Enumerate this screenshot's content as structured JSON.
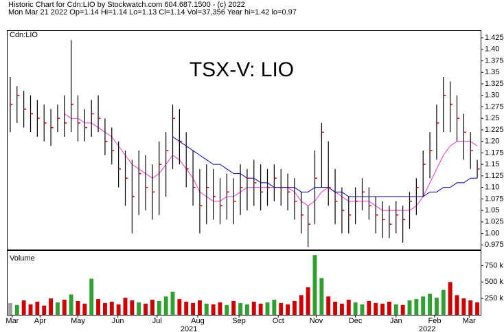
{
  "header": {
    "line1": "Historic Chart for Cdn:LIO by Stockwatch.com 604.687.1500 - (c) 2022",
    "line2": "Mon Mar 21 2022  Op=1.14  Hi=1.14  Lo=1.13  Cl=1.14  Vol=37,356  Year hi=1.42  lo=0.97"
  },
  "chart_data": [
    {
      "type": "ohlc",
      "title": "TSX-V: LIO",
      "label": "Cdn:LIO",
      "color": "#000000",
      "close_color": "#e00000",
      "categories": [
        null,
        null,
        null,
        null,
        null,
        null,
        null,
        null,
        null,
        null,
        null,
        null,
        null,
        null,
        null,
        null,
        null,
        null,
        null,
        null,
        null,
        null,
        null,
        null,
        null,
        null,
        null,
        null,
        null,
        null,
        null,
        null,
        null,
        null,
        null,
        null,
        null,
        null,
        null,
        null,
        null,
        null,
        null,
        null,
        null,
        null,
        null,
        null,
        null,
        null,
        null,
        null,
        null,
        null,
        null,
        null,
        null,
        null,
        null,
        null,
        null,
        null,
        null,
        null,
        null,
        null,
        null,
        null,
        null,
        null
      ],
      "high": [
        1.34,
        1.32,
        1.31,
        1.3,
        1.29,
        1.28,
        1.27,
        1.28,
        1.3,
        1.42,
        1.3,
        1.27,
        1.29,
        1.3,
        1.25,
        1.23,
        1.2,
        1.18,
        1.16,
        1.18,
        1.17,
        1.15,
        1.2,
        1.22,
        1.28,
        1.27,
        1.22,
        1.18,
        1.14,
        1.15,
        1.14,
        1.12,
        1.13,
        1.12,
        1.15,
        1.14,
        1.16,
        1.15,
        1.14,
        1.15,
        1.14,
        1.13,
        1.12,
        1.09,
        1.06,
        1.18,
        1.24,
        1.2,
        1.14,
        1.1,
        1.08,
        1.1,
        1.12,
        1.1,
        1.08,
        1.07,
        1.06,
        1.07,
        1.06,
        1.09,
        1.12,
        1.18,
        1.22,
        1.28,
        1.34,
        1.33,
        1.3,
        1.26,
        1.22,
        1.16
      ],
      "low": [
        1.22,
        1.24,
        1.23,
        1.22,
        1.21,
        1.2,
        1.19,
        1.22,
        1.21,
        1.22,
        1.2,
        1.2,
        1.21,
        1.22,
        1.17,
        1.15,
        1.1,
        1.06,
        1.0,
        1.04,
        1.05,
        1.03,
        1.04,
        1.08,
        1.14,
        1.15,
        1.1,
        1.06,
        1.0,
        1.02,
        1.03,
        1.02,
        1.03,
        1.02,
        1.04,
        1.05,
        1.06,
        1.05,
        1.06,
        1.07,
        1.06,
        1.05,
        1.03,
        1.0,
        0.97,
        1.02,
        1.1,
        1.06,
        1.02,
        1.0,
        1.0,
        1.02,
        1.05,
        1.03,
        1.0,
        0.99,
        0.99,
        1.0,
        0.98,
        1.01,
        1.04,
        1.08,
        1.12,
        1.16,
        1.22,
        1.22,
        1.2,
        1.16,
        1.14,
        1.12
      ],
      "close": [
        1.28,
        1.3,
        1.27,
        1.26,
        1.25,
        1.24,
        1.23,
        1.25,
        1.24,
        1.28,
        1.24,
        1.23,
        1.26,
        1.25,
        1.2,
        1.18,
        1.14,
        1.12,
        1.08,
        1.13,
        1.1,
        1.09,
        1.15,
        1.18,
        1.25,
        1.2,
        1.14,
        1.1,
        1.06,
        1.1,
        1.08,
        1.06,
        1.09,
        1.07,
        1.1,
        1.12,
        1.11,
        1.09,
        1.1,
        1.12,
        1.1,
        1.09,
        1.07,
        1.04,
        1.02,
        1.12,
        1.22,
        1.1,
        1.07,
        1.05,
        1.04,
        1.07,
        1.09,
        1.06,
        1.04,
        1.03,
        1.02,
        1.04,
        1.03,
        1.07,
        1.1,
        1.15,
        1.18,
        1.24,
        1.3,
        1.28,
        1.25,
        1.22,
        1.18,
        1.14
      ],
      "ma": [
        {
          "color": "#ff33cc",
          "values": [
            null,
            null,
            null,
            null,
            null,
            null,
            null,
            null,
            1.26,
            1.25,
            1.25,
            1.24,
            1.24,
            1.23,
            1.22,
            1.21,
            1.19,
            1.17,
            1.15,
            1.14,
            1.13,
            1.12,
            1.13,
            1.15,
            1.17,
            1.16,
            1.14,
            1.12,
            1.09,
            1.08,
            1.07,
            1.07,
            1.08,
            1.08,
            1.09,
            1.1,
            1.1,
            1.1,
            1.1,
            1.1,
            1.1,
            1.1,
            1.09,
            1.07,
            1.06,
            1.07,
            1.09,
            1.1,
            1.09,
            1.08,
            1.07,
            1.07,
            1.07,
            1.07,
            1.06,
            1.05,
            1.05,
            1.05,
            1.05,
            1.05,
            1.06,
            1.08,
            1.11,
            1.14,
            1.17,
            1.19,
            1.2,
            1.2,
            1.2,
            1.19
          ]
        },
        {
          "color": "#0000cc",
          "values": [
            null,
            null,
            null,
            null,
            null,
            null,
            null,
            null,
            null,
            null,
            null,
            null,
            null,
            null,
            null,
            null,
            null,
            null,
            null,
            null,
            null,
            null,
            null,
            null,
            1.21,
            1.2,
            1.19,
            1.18,
            1.17,
            1.16,
            1.15,
            1.15,
            1.14,
            1.13,
            1.13,
            1.12,
            1.12,
            1.11,
            1.11,
            1.1,
            1.1,
            1.1,
            1.1,
            1.09,
            1.09,
            1.1,
            1.1,
            1.1,
            1.09,
            1.09,
            1.08,
            1.08,
            1.08,
            1.08,
            1.08,
            1.08,
            1.08,
            1.08,
            1.08,
            1.08,
            1.08,
            1.08,
            1.09,
            1.09,
            1.1,
            1.1,
            1.11,
            1.11,
            1.12,
            1.12
          ]
        }
      ],
      "ylim": [
        0.965,
        1.44
      ],
      "yticks": [
        0.975,
        {
          "value": 1.0,
          "label": "1.00"
        },
        1.025,
        1.05,
        1.075,
        {
          "value": 1.1,
          "label": "1.10"
        },
        1.125,
        1.15,
        1.175,
        {
          "value": 1.2,
          "label": "1.20"
        },
        1.225,
        1.25,
        1.275,
        {
          "value": 1.3,
          "label": "1.30"
        },
        1.325,
        1.35,
        1.375,
        {
          "value": 1.4,
          "label": "1.40"
        },
        1.425
      ]
    },
    {
      "type": "bar",
      "label": "Volume",
      "values": [
        180000,
        150000,
        220000,
        160000,
        200000,
        140000,
        250000,
        190000,
        230000,
        310000,
        210000,
        170000,
        550000,
        240000,
        180000,
        200000,
        160000,
        260000,
        220000,
        190000,
        170000,
        230000,
        210000,
        280000,
        350000,
        240000,
        200000,
        180000,
        220000,
        170000,
        160000,
        190000,
        150000,
        210000,
        180000,
        160000,
        200000,
        170000,
        190000,
        230000,
        180000,
        160000,
        210000,
        300000,
        420000,
        910000,
        560000,
        280000,
        200000,
        170000,
        230000,
        190000,
        160000,
        210000,
        180000,
        170000,
        200000,
        160000,
        150000,
        220000,
        240000,
        280000,
        320000,
        260000,
        380000,
        500000,
        300000,
        250000,
        220000,
        190000
      ],
      "colors": [
        "#a0a0a0",
        "#30a030",
        "#d00000",
        "#d00000",
        "#d00000",
        "#d00000",
        "#d00000",
        "#30a030",
        "#d00000",
        "#30a030",
        "#d00000",
        "#d00000",
        "#30a030",
        "#d00000",
        "#d00000",
        "#d00000",
        "#d00000",
        "#d00000",
        "#d00000",
        "#30a030",
        "#d00000",
        "#d00000",
        "#30a030",
        "#30a030",
        "#30a030",
        "#d00000",
        "#d00000",
        "#d00000",
        "#d00000",
        "#30a030",
        "#d00000",
        "#d00000",
        "#30a030",
        "#d00000",
        "#30a030",
        "#30a030",
        "#d00000",
        "#d00000",
        "#30a030",
        "#30a030",
        "#d00000",
        "#d00000",
        "#d00000",
        "#d00000",
        "#d00000",
        "#30a030",
        "#30a030",
        "#d00000",
        "#d00000",
        "#d00000",
        "#d00000",
        "#30a030",
        "#30a030",
        "#d00000",
        "#d00000",
        "#d00000",
        "#d00000",
        "#30a030",
        "#d00000",
        "#30a030",
        "#30a030",
        "#30a030",
        "#30a030",
        "#30a030",
        "#30a030",
        "#d00000",
        "#d00000",
        "#d00000",
        "#d00000",
        "#d00000"
      ],
      "ylim": [
        0,
        975000
      ],
      "yticks": [
        {
          "value": 250000,
          "label": "250 k"
        },
        {
          "value": 500000,
          "label": "500 k"
        },
        {
          "value": 750000,
          "label": "750 k"
        }
      ],
      "xticks": [
        {
          "value": 0.8,
          "label": "Mar"
        },
        {
          "value": 4.9,
          "label": "Apr"
        },
        {
          "value": 10.5,
          "label": "May"
        },
        {
          "value": 16.4,
          "label": "Jun"
        },
        {
          "value": 22.2,
          "label": "Jul"
        },
        {
          "value": 28.2,
          "label": "Aug"
        },
        {
          "value": 34.3,
          "label": "Sep"
        },
        {
          "value": 40.1,
          "label": "Oct"
        },
        {
          "value": 45.7,
          "label": "Nov"
        },
        {
          "value": 51.5,
          "label": "Dec"
        },
        {
          "value": 57.5,
          "label": "Jan"
        },
        {
          "value": 63.2,
          "label": "Feb"
        },
        {
          "value": 68.3,
          "label": "Mar"
        }
      ],
      "year_ticks": [
        {
          "value": 26.9,
          "label": "2021"
        },
        {
          "value": 62.1,
          "label": "2022"
        }
      ]
    }
  ]
}
